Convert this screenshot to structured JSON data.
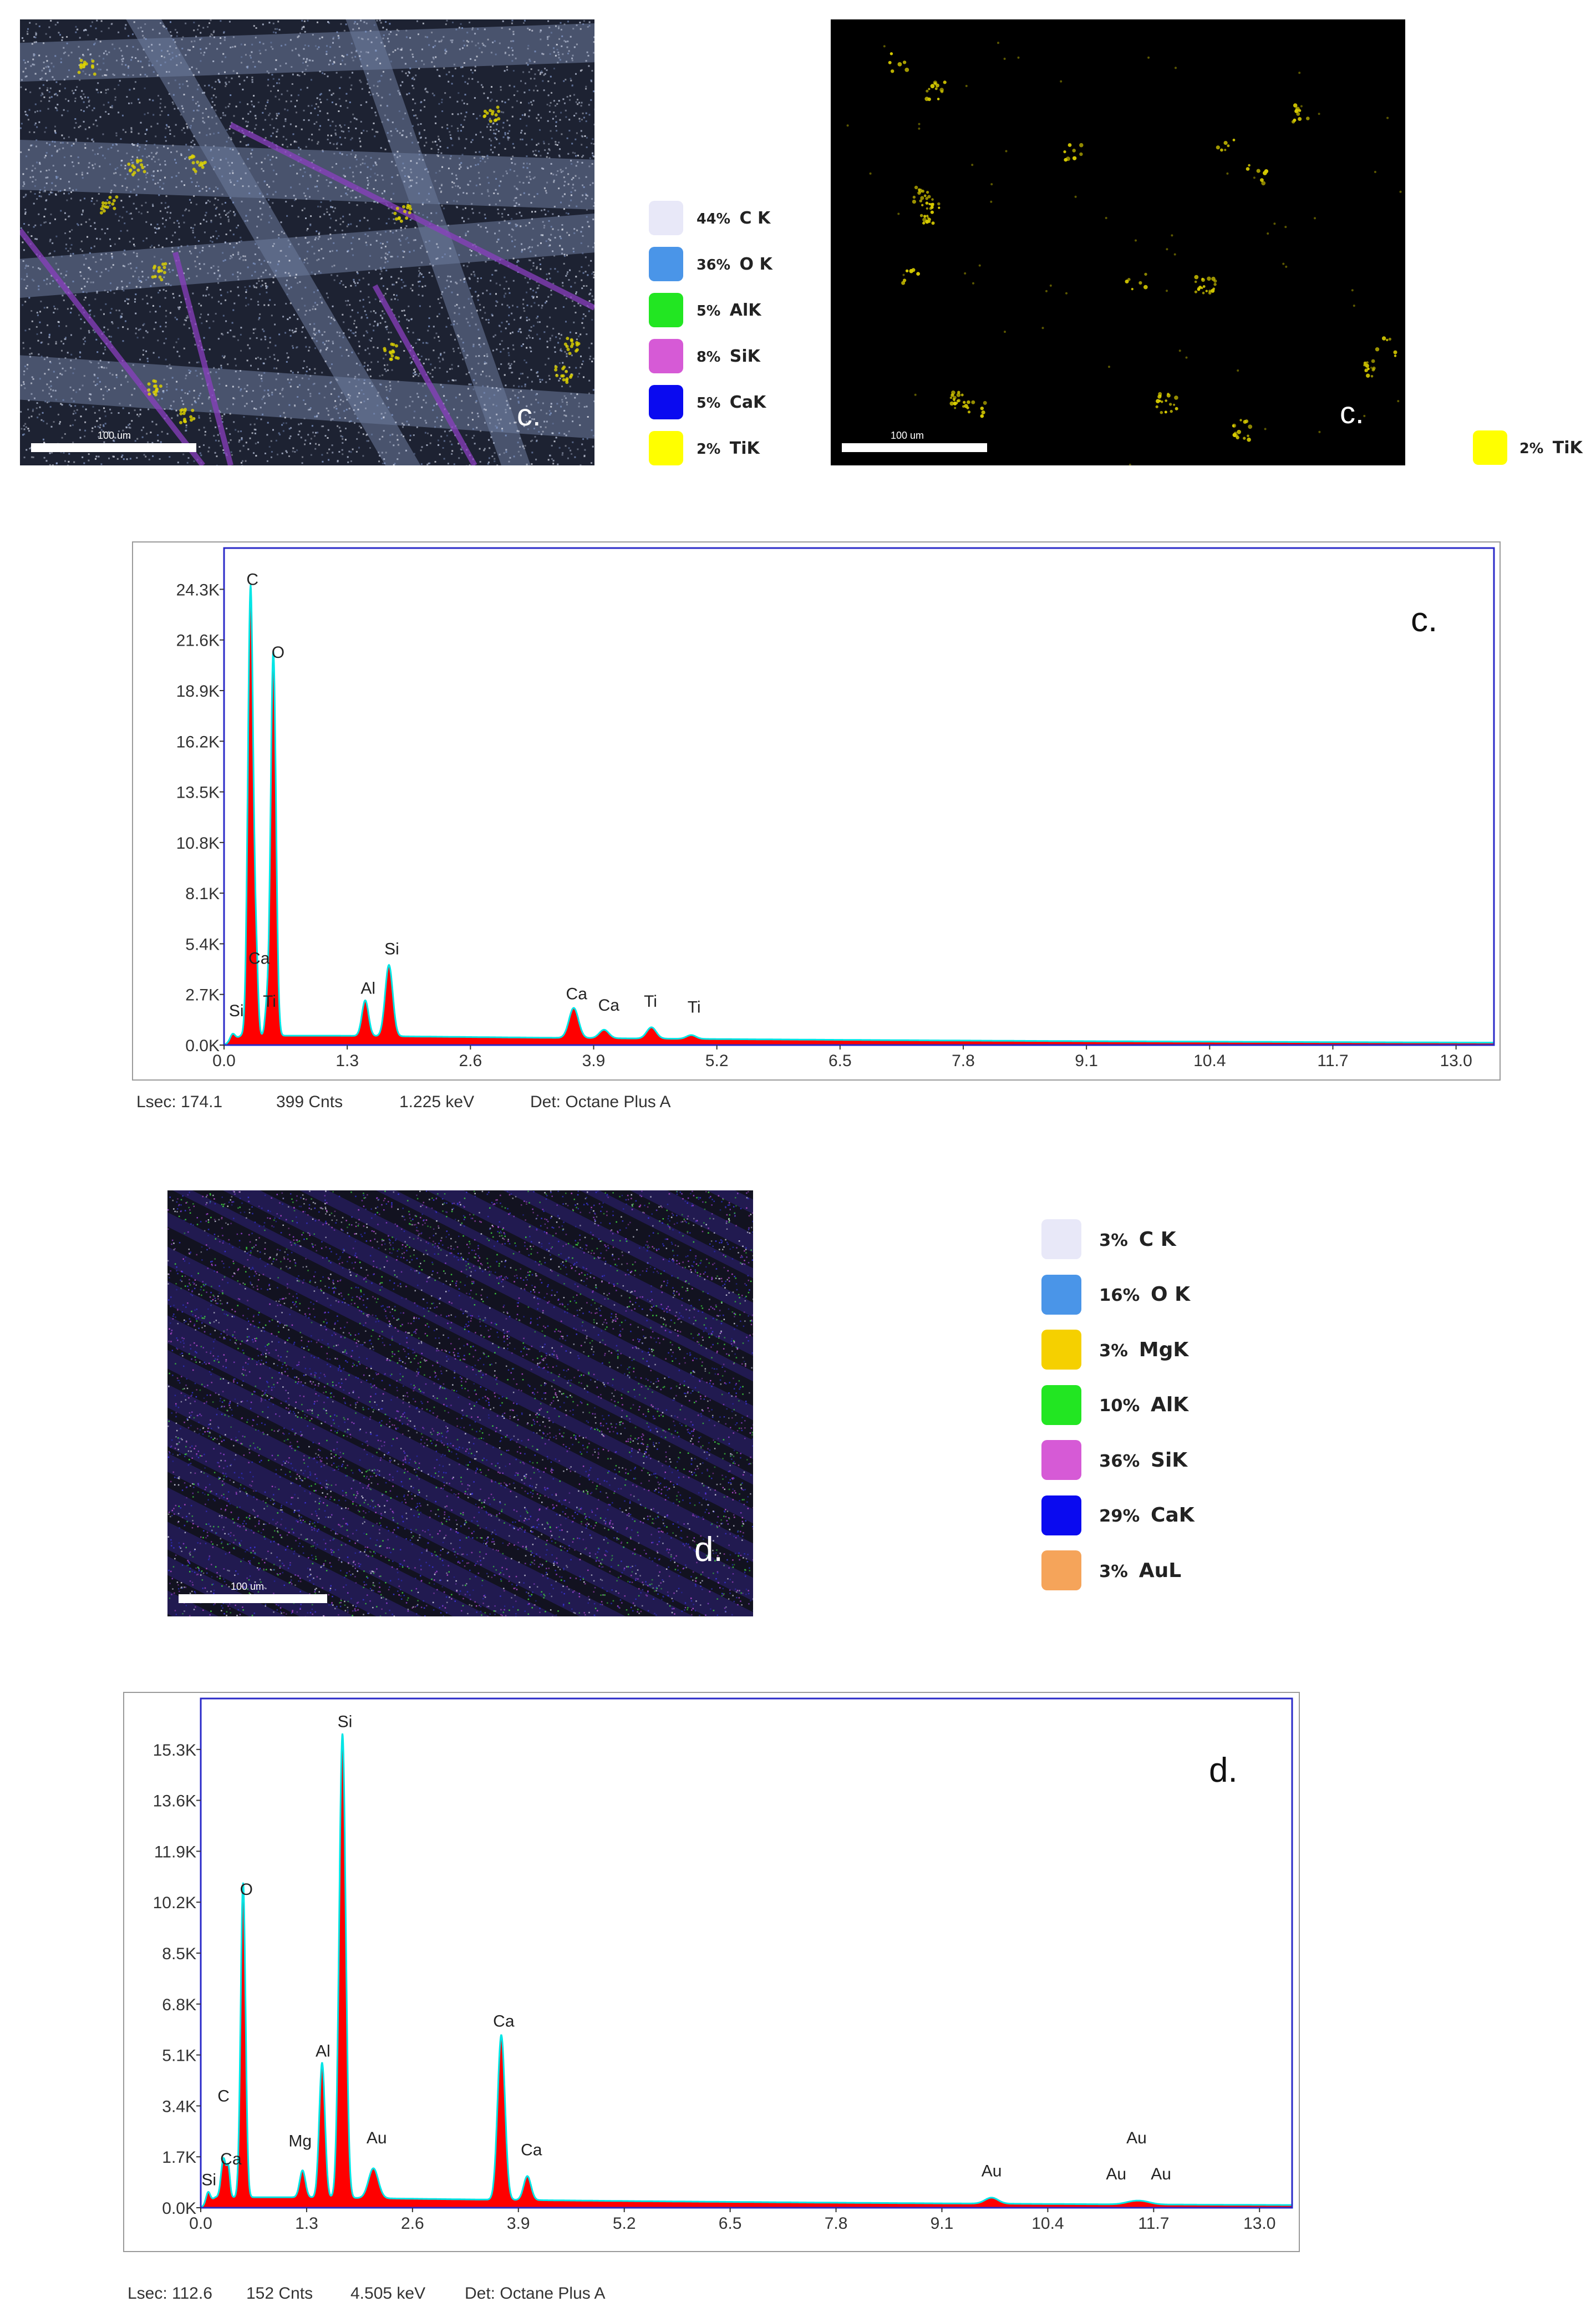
{
  "panel_c": {
    "map_left": {
      "label": "c.",
      "scale": "100 um"
    },
    "legend_left": [
      {
        "pct": "44%",
        "element": "C K",
        "color": "#e8e8f8"
      },
      {
        "pct": "36%",
        "element": "O K",
        "color": "#4a95e8"
      },
      {
        "pct": "5%",
        "element": "AlK",
        "color": "#22e622"
      },
      {
        "pct": "8%",
        "element": "SiK",
        "color": "#d65ad6"
      },
      {
        "pct": "5%",
        "element": "CaK",
        "color": "#0a0af0"
      },
      {
        "pct": "2%",
        "element": "TiK",
        "color": "#ffff00"
      }
    ],
    "map_right": {
      "label": "c.",
      "scale": "100 um"
    },
    "legend_right": [
      {
        "pct": "2%",
        "element": "TiK",
        "color": "#ffff00"
      }
    ],
    "status": {
      "lsec": "Lsec: 174.1",
      "cnts": "399 Cnts",
      "kev": "1.225 keV",
      "det": "Det: Octane Plus A"
    }
  },
  "panel_d": {
    "map": {
      "label": "d.",
      "scale": "100 um"
    },
    "legend": [
      {
        "pct": "3%",
        "element": "C K",
        "color": "#e8e8f8"
      },
      {
        "pct": "16%",
        "element": "O K",
        "color": "#4a95e8"
      },
      {
        "pct": "3%",
        "element": "MgK",
        "color": "#f5d000"
      },
      {
        "pct": "10%",
        "element": "AlK",
        "color": "#22e622"
      },
      {
        "pct": "36%",
        "element": "SiK",
        "color": "#d65ad6"
      },
      {
        "pct": "29%",
        "element": "CaK",
        "color": "#0a0af0"
      },
      {
        "pct": "3%",
        "element": "AuL",
        "color": "#f5a45a"
      }
    ],
    "status": {
      "lsec": "Lsec: 112.6",
      "cnts": "152 Cnts",
      "kev": "4.505 keV",
      "det": "Det: Octane Plus A"
    }
  },
  "colors": {
    "fill": "#ff0000",
    "outline": "#00e5e5",
    "frame": "#2a2ac8"
  },
  "chart_data": [
    {
      "type": "area",
      "title": "c.",
      "xlabel": "",
      "ylabel": "",
      "xlim": [
        0,
        13.4
      ],
      "ylim": [
        0,
        26.5
      ],
      "x_ticks": [
        "0.0",
        "1.3",
        "2.6",
        "3.9",
        "5.2",
        "6.5",
        "7.8",
        "9.1",
        "10.4",
        "11.7",
        "13.0"
      ],
      "x_tick_values": [
        0,
        1.3,
        2.6,
        3.9,
        5.2,
        6.5,
        7.8,
        9.1,
        10.4,
        11.7,
        13.0
      ],
      "y_ticks": [
        "0.0K",
        "2.7K",
        "5.4K",
        "8.1K",
        "10.8K",
        "13.5K",
        "16.2K",
        "18.9K",
        "21.6K",
        "24.3K"
      ],
      "y_tick_values": [
        0,
        2.7,
        5.4,
        8.1,
        10.8,
        13.5,
        16.2,
        18.9,
        21.6,
        24.3
      ],
      "baseline": 0.5,
      "peaks": [
        {
          "element": "Si",
          "x": 0.09,
          "y": 0.35,
          "w": 0.025
        },
        {
          "element": "C",
          "x": 0.28,
          "y": 24.0,
          "w": 0.028
        },
        {
          "element": "Ca",
          "x": 0.34,
          "y": 3.5,
          "w": 0.02
        },
        {
          "element": "O",
          "x": 0.52,
          "y": 20.5,
          "w": 0.028
        },
        {
          "element": "Ti",
          "x": 0.45,
          "y": 1.3,
          "w": 0.02
        },
        {
          "element": "Al",
          "x": 1.49,
          "y": 1.9,
          "w": 0.035
        },
        {
          "element": "Si",
          "x": 1.74,
          "y": 3.8,
          "w": 0.04
        },
        {
          "element": "Ca",
          "x": 3.69,
          "y": 1.6,
          "w": 0.05
        },
        {
          "element": "Ca",
          "x": 4.01,
          "y": 0.45,
          "w": 0.05
        },
        {
          "element": "Ti",
          "x": 4.51,
          "y": 0.6,
          "w": 0.05
        },
        {
          "element": "Ti",
          "x": 4.93,
          "y": 0.2,
          "w": 0.05
        }
      ],
      "peak_labels": [
        {
          "text": "C",
          "x": 0.3,
          "y": 24.3
        },
        {
          "text": "O",
          "x": 0.57,
          "y": 20.4
        },
        {
          "text": "Ca",
          "x": 0.37,
          "y": 4.1
        },
        {
          "text": "Ti",
          "x": 0.48,
          "y": 1.8
        },
        {
          "text": "Si",
          "x": 0.13,
          "y": 1.3
        },
        {
          "text": "Al",
          "x": 1.52,
          "y": 2.5
        },
        {
          "text": "Si",
          "x": 1.77,
          "y": 4.6
        },
        {
          "text": "Ca",
          "x": 3.72,
          "y": 2.2
        },
        {
          "text": "Ca",
          "x": 4.06,
          "y": 1.6
        },
        {
          "text": "Ti",
          "x": 4.5,
          "y": 1.8
        },
        {
          "text": "Ti",
          "x": 4.96,
          "y": 1.5
        }
      ]
    },
    {
      "type": "area",
      "title": "d.",
      "xlabel": "",
      "ylabel": "",
      "xlim": [
        0,
        13.4
      ],
      "ylim": [
        0,
        17.0
      ],
      "x_ticks": [
        "0.0",
        "1.3",
        "2.6",
        "3.9",
        "5.2",
        "6.5",
        "7.8",
        "9.1",
        "10.4",
        "11.7",
        "13.0"
      ],
      "x_tick_values": [
        0,
        1.3,
        2.6,
        3.9,
        5.2,
        6.5,
        7.8,
        9.1,
        10.4,
        11.7,
        13.0
      ],
      "y_ticks": [
        "0.0K",
        "1.7K",
        "3.4K",
        "5.1K",
        "6.8K",
        "8.5K",
        "10.2K",
        "11.9K",
        "13.6K",
        "15.3K"
      ],
      "y_tick_values": [
        0,
        1.7,
        3.4,
        5.1,
        6.8,
        8.5,
        10.2,
        11.9,
        13.6,
        15.3
      ],
      "baseline": 0.35,
      "peaks": [
        {
          "element": "Si",
          "x": 0.09,
          "y": 0.35,
          "w": 0.025
        },
        {
          "element": "C",
          "x": 0.28,
          "y": 1.3,
          "w": 0.03
        },
        {
          "element": "Ca",
          "x": 0.34,
          "y": 0.9,
          "w": 0.02
        },
        {
          "element": "O",
          "x": 0.52,
          "y": 10.5,
          "w": 0.03
        },
        {
          "element": "Mg",
          "x": 1.25,
          "y": 0.9,
          "w": 0.035
        },
        {
          "element": "Al",
          "x": 1.49,
          "y": 4.5,
          "w": 0.035
        },
        {
          "element": "Si",
          "x": 1.74,
          "y": 15.5,
          "w": 0.04
        },
        {
          "element": "Au",
          "x": 2.12,
          "y": 1.0,
          "w": 0.06
        },
        {
          "element": "Ca",
          "x": 3.69,
          "y": 5.5,
          "w": 0.045
        },
        {
          "element": "Ca",
          "x": 4.01,
          "y": 0.8,
          "w": 0.045
        },
        {
          "element": "Au",
          "x": 9.71,
          "y": 0.2,
          "w": 0.08
        },
        {
          "element": "Au",
          "x": 11.44,
          "y": 0.08,
          "w": 0.1
        },
        {
          "element": "Au",
          "x": 11.58,
          "y": 0.08,
          "w": 0.1
        }
      ],
      "peak_labels": [
        {
          "text": "O",
          "x": 0.56,
          "y": 10.3
        },
        {
          "text": "C",
          "x": 0.28,
          "y": 3.4
        },
        {
          "text": "Ca",
          "x": 0.37,
          "y": 1.3
        },
        {
          "text": "Si",
          "x": 0.1,
          "y": 0.6
        },
        {
          "text": "Mg",
          "x": 1.22,
          "y": 1.9
        },
        {
          "text": "Al",
          "x": 1.5,
          "y": 4.9
        },
        {
          "text": "Si",
          "x": 1.77,
          "y": 15.9
        },
        {
          "text": "Au",
          "x": 2.16,
          "y": 2.0
        },
        {
          "text": "Ca",
          "x": 3.72,
          "y": 5.9
        },
        {
          "text": "Ca",
          "x": 4.06,
          "y": 1.6
        },
        {
          "text": "Au",
          "x": 9.71,
          "y": 0.9
        },
        {
          "text": "Au",
          "x": 11.49,
          "y": 2.0
        },
        {
          "text": "Au",
          "x": 11.24,
          "y": 0.8
        },
        {
          "text": "Au",
          "x": 11.79,
          "y": 0.8
        }
      ]
    }
  ]
}
